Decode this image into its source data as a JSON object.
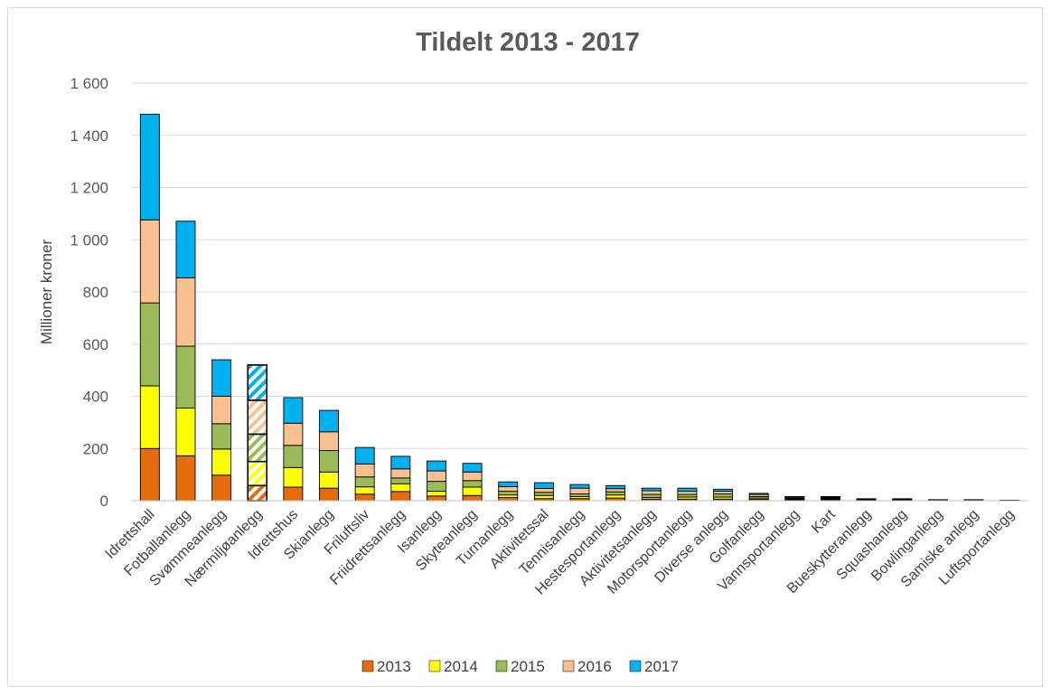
{
  "chart_data": {
    "type": "bar",
    "stacked": true,
    "title": "Tildelt 2013 - 2017",
    "ylabel": "Millioner kroner",
    "xlabel": "",
    "ylim": [
      0,
      1600
    ],
    "yticks": [
      0,
      200,
      400,
      600,
      800,
      1000,
      1200,
      1400,
      1600
    ],
    "ytick_labels": [
      "0",
      "200",
      "400",
      "600",
      "800",
      "1 000",
      "1 200",
      "1 400",
      "1 600"
    ],
    "grid": true,
    "legend_position": "bottom",
    "categories": [
      "Idrettshall",
      "Fotballanlegg",
      "Svømmeanlegg",
      "Nærmiljøanlegg",
      "Idrettshus",
      "Skianlegg",
      "Friluftsliv",
      "Friidrettsanlegg",
      "Isanlegg",
      "Skyteanlegg",
      "Turnanlegg",
      "Aktivitetssal",
      "Tennisanlegg",
      "Hestesportanlegg",
      "Aktivitetsanlegg",
      "Motorsportanlegg",
      "Diverse anlegg",
      "Golfanlegg",
      "Vannsportanlegg",
      "Kart",
      "Bueskytteranlegg",
      "Squashanlegg",
      "Bowlinganlegg",
      "Samiske anlegg",
      "Luftsportanlegg"
    ],
    "hatched_categories": [
      "Nærmiljøanlegg"
    ],
    "series": [
      {
        "name": "2013",
        "color": "#E46C0A",
        "values": [
          200,
          172,
          98,
          58,
          52,
          48,
          25,
          35,
          18,
          20,
          12,
          8,
          8,
          10,
          6,
          6,
          6,
          5,
          3,
          4,
          1.5,
          1.5,
          0.8,
          0.8,
          0.4
        ]
      },
      {
        "name": "2014",
        "color": "#FFFF00",
        "values": [
          240,
          183,
          100,
          92,
          75,
          62,
          28,
          30,
          18,
          32,
          10,
          12,
          8,
          12,
          6,
          8,
          8,
          5,
          3,
          3,
          1.5,
          1.5,
          0.8,
          0.8,
          0.4
        ]
      },
      {
        "name": "2015",
        "color": "#9BBB59",
        "values": [
          318,
          237,
          97,
          105,
          85,
          82,
          38,
          22,
          38,
          25,
          14,
          12,
          10,
          12,
          12,
          10,
          12,
          6,
          3,
          3,
          1.5,
          1.5,
          0.8,
          0.8,
          0.4
        ]
      },
      {
        "name": "2016",
        "color": "#FAC090",
        "values": [
          318,
          262,
          105,
          130,
          85,
          72,
          50,
          35,
          40,
          33,
          18,
          15,
          22,
          12,
          14,
          12,
          10,
          8,
          4,
          3,
          1.5,
          1.5,
          0.8,
          0.8,
          0.4
        ]
      },
      {
        "name": "2017",
        "color": "#00B0F0",
        "values": [
          405,
          217,
          140,
          135,
          98,
          82,
          63,
          48,
          38,
          33,
          18,
          22,
          14,
          12,
          10,
          12,
          8,
          4,
          3,
          3,
          1.5,
          1.5,
          0.8,
          0.8,
          0.4
        ]
      }
    ]
  }
}
